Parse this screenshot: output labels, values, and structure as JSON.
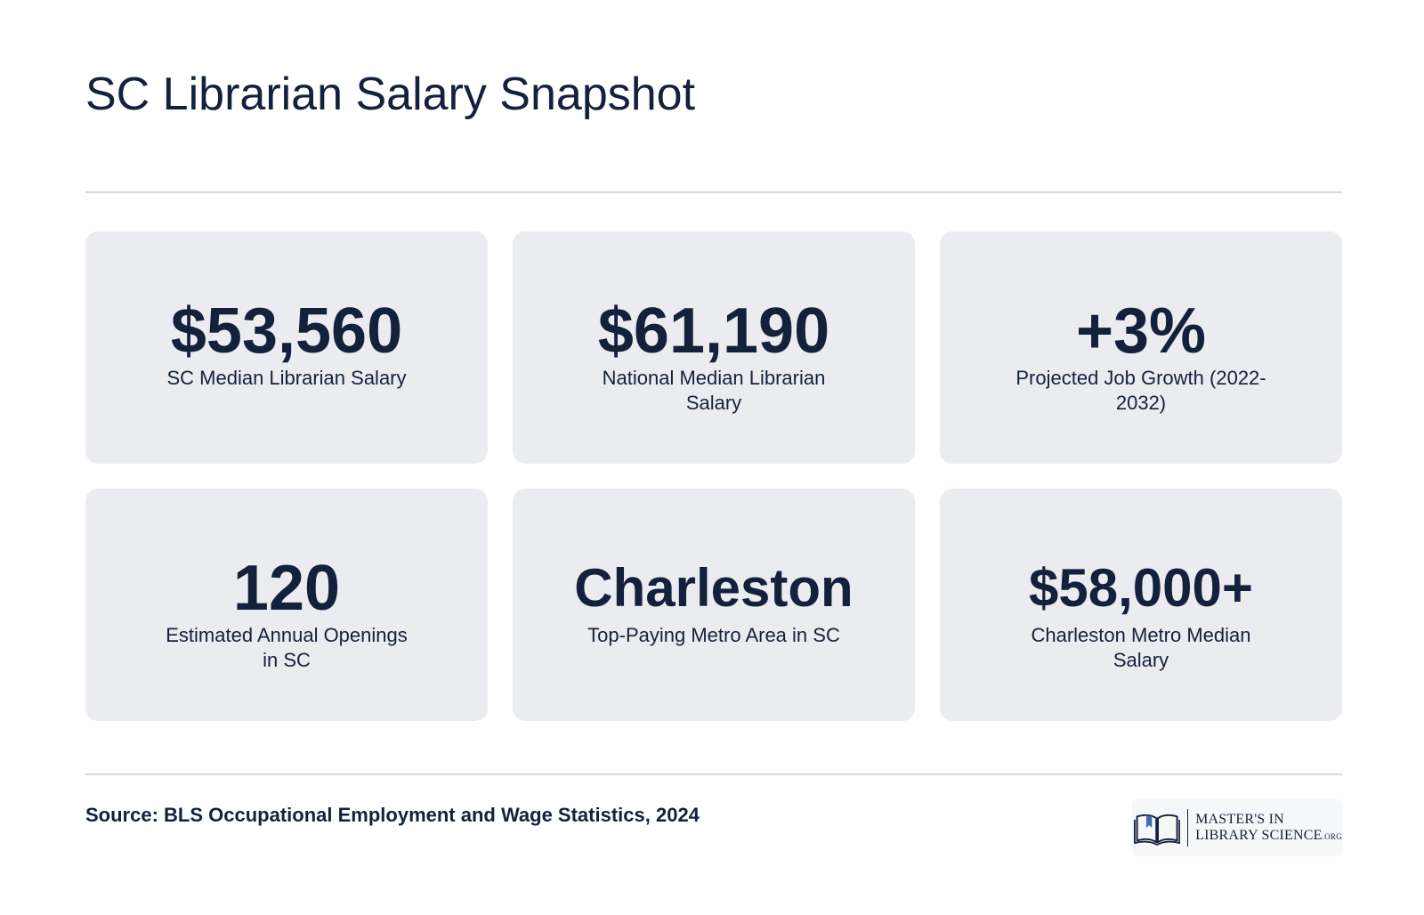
{
  "header": {
    "title": "SC Librarian Salary Snapshot"
  },
  "stats": [
    {
      "value": "$53,560",
      "label": "SC Median Librarian Salary"
    },
    {
      "value": "$61,190",
      "label": "National Median Librarian Salary"
    },
    {
      "value": "+3%",
      "label": "Projected Job Growth (2022-2032)"
    },
    {
      "value": "120",
      "label": "Estimated Annual Openings in SC"
    },
    {
      "value": "Charleston",
      "label": "Top-Paying Metro Area in SC"
    },
    {
      "value": "$58,000+",
      "label": "Charleston Metro Median Salary"
    }
  ],
  "footer": {
    "source": "Source: BLS Occupational Employment and Wage Statistics, 2024"
  },
  "logo": {
    "line1": "MASTER'S IN",
    "line2": "LIBRARY SCIENCE",
    "suffix": ".ORG",
    "icon": "open-book-icon"
  },
  "colors": {
    "text": "#14213d",
    "card_background": "#ebecef",
    "divider": "#d7d9dd",
    "page_background": "#ffffff"
  }
}
